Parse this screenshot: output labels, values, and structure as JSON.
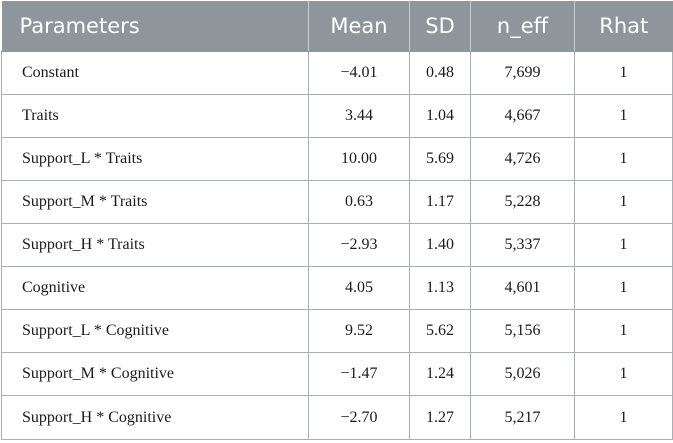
{
  "table": {
    "headers": [
      "Parameters",
      "Mean",
      "SD",
      "n_eff",
      "Rhat"
    ],
    "rows": [
      {
        "param": "Constant",
        "mean": "−4.01",
        "sd": "0.48",
        "neff": "7,699",
        "rhat": "1"
      },
      {
        "param": "Traits",
        "mean": "3.44",
        "sd": "1.04",
        "neff": "4,667",
        "rhat": "1"
      },
      {
        "param": "Support_L * Traits",
        "mean": "10.00",
        "sd": "5.69",
        "neff": "4,726",
        "rhat": "1"
      },
      {
        "param": "Support_M * Traits",
        "mean": "0.63",
        "sd": "1.17",
        "neff": "5,228",
        "rhat": "1"
      },
      {
        "param": "Support_H * Traits",
        "mean": "−2.93",
        "sd": "1.40",
        "neff": "5,337",
        "rhat": "1"
      },
      {
        "param": "Cognitive",
        "mean": "4.05",
        "sd": "1.13",
        "neff": "4,601",
        "rhat": "1"
      },
      {
        "param": "Support_L * Cognitive",
        "mean": "9.52",
        "sd": "5.62",
        "neff": "5,156",
        "rhat": "1"
      },
      {
        "param": "Support_M * Cognitive",
        "mean": "−1.47",
        "sd": "1.24",
        "neff": "5,026",
        "rhat": "1"
      },
      {
        "param": "Support_H * Cognitive",
        "mean": "−2.70",
        "sd": "1.27",
        "neff": "5,217",
        "rhat": "1"
      }
    ]
  },
  "colors": {
    "header_bg": "#8f969b",
    "header_text": "#ffffff",
    "grid": "#a9aeb2"
  }
}
